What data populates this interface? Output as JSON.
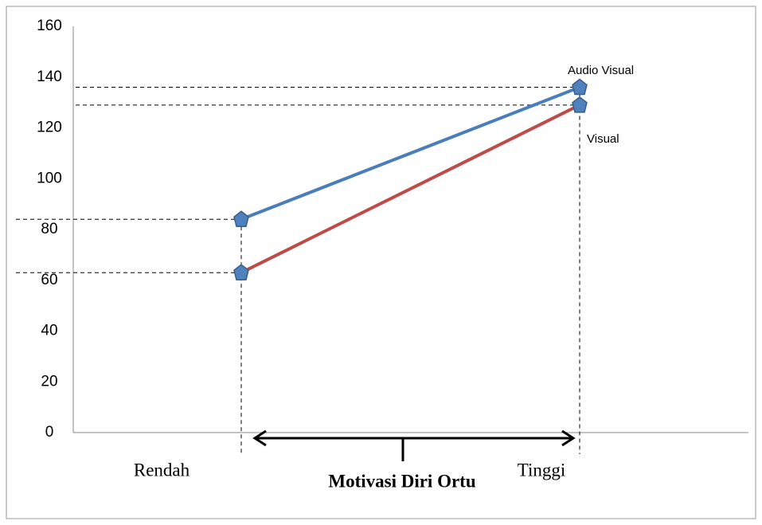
{
  "chart_data": {
    "type": "line",
    "categories": [
      "Rendah",
      "Tinggi"
    ],
    "series": [
      {
        "name": "Audio Visual",
        "color": "#4a7ebb",
        "values": [
          84,
          136
        ]
      },
      {
        "name": "Visual",
        "color": "#be4b48",
        "values": [
          63,
          129
        ]
      }
    ],
    "ylim": [
      0,
      160
    ],
    "yticks": [
      0,
      20,
      40,
      60,
      80,
      100,
      120,
      140,
      160
    ],
    "x_label": "Motivasi Diri Ortu",
    "grid": false
  }
}
